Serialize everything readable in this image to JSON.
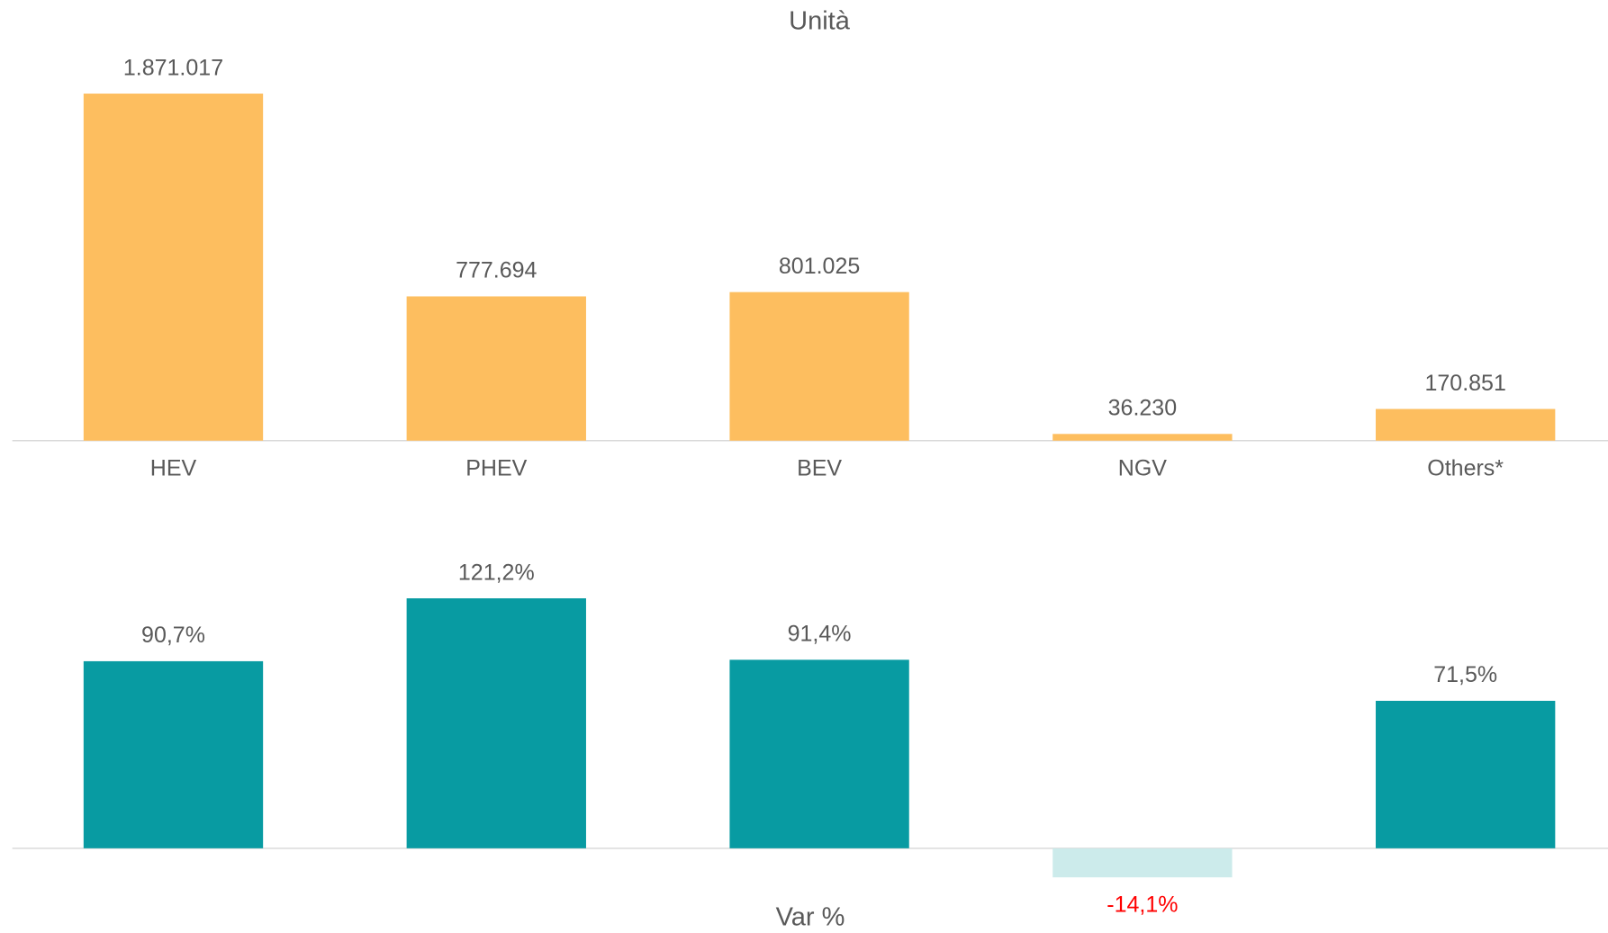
{
  "chart_data": [
    {
      "type": "bar",
      "title": "Unità",
      "categories": [
        "HEV",
        "PHEV",
        "BEV",
        "NGV",
        "Others*"
      ],
      "values": [
        1871017,
        777694,
        801025,
        36230,
        170851
      ],
      "value_labels": [
        "1.871.017",
        "777.694",
        "801.025",
        "36.230",
        "170.851"
      ],
      "color": "#FDBE5F",
      "ylim": [
        0,
        2000000
      ]
    },
    {
      "type": "bar",
      "title": "Var %",
      "values": [
        90.7,
        121.2,
        91.4,
        -14.1,
        71.5
      ],
      "value_labels": [
        "90,7%",
        "121,2%",
        "91,4%",
        "-14,1%",
        "71,5%"
      ],
      "color": "#089BA2",
      "negative_color": "#CCEBEB",
      "negative_label_color": "#FF0000",
      "ylim": [
        -20,
        140
      ]
    }
  ]
}
